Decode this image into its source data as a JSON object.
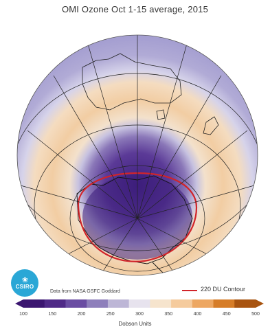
{
  "title": "OMI Ozone Oct 1-15 average, 2015",
  "credit": "Data from NASA GSFC Goddard",
  "contour": {
    "label": "220 DU Contour",
    "value": 220,
    "color": "#d1242a"
  },
  "colorbar": {
    "min": 100,
    "max": 500,
    "ticks": [
      "100",
      "150",
      "200",
      "250",
      "300",
      "350",
      "400",
      "450",
      "500"
    ],
    "unit_label": "Dobson Units",
    "colors": [
      "#3b1670",
      "#4f2a87",
      "#6a4da2",
      "#8e7fbb",
      "#bdb6d6",
      "#e7e3ee",
      "#f6e4cd",
      "#f5cb9d",
      "#eda762",
      "#d67d28",
      "#a85410"
    ]
  },
  "logo": {
    "name": "csiro-logo",
    "text": "CSIRO"
  }
}
